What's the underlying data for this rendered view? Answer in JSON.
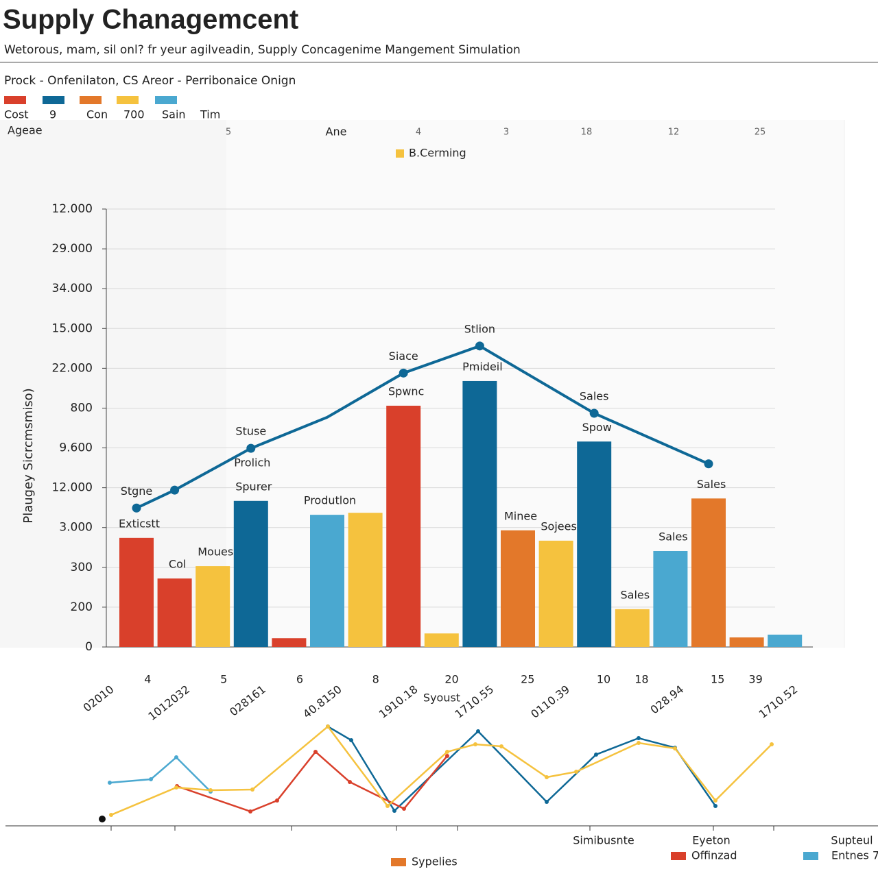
{
  "chart_data": {
    "type": "bar",
    "title": "Supply Chanagemcent",
    "subtitle": "Wetorous, mam, sil onl? fr yeur agilveadin, Supply Concagenime Mangement Simulation",
    "section_label": "Prock - Onfenilaton, CS Areor - Perribonaice Onign",
    "legend": [
      {
        "name": "Cost",
        "color": "#d9402b"
      },
      {
        "name": "9",
        "color": "#0e6896"
      },
      {
        "name": "Con",
        "color": "#e3782a"
      },
      {
        "name": "700",
        "color": "#f5c23e"
      },
      {
        "name": "Sain",
        "color": "#4aa8d0"
      },
      {
        "name": "Tim"
      }
    ],
    "legend_sub": "Ageae",
    "top_labels": [
      "5",
      "Ane",
      "4",
      "3",
      "18",
      "12",
      "25"
    ],
    "top_legend": {
      "name": "B.Cerming",
      "color": "#f5c23e"
    },
    "ylabel": "Plaugey Sicrcmsmiso)",
    "ylim": [
      0,
      11
    ],
    "yticks": [
      {
        "value": 0,
        "label": "0"
      },
      {
        "value": 1,
        "label": "200"
      },
      {
        "value": 2,
        "label": "300"
      },
      {
        "value": 3,
        "label": "3.000"
      },
      {
        "value": 4,
        "label": "12.000"
      },
      {
        "value": 5,
        "label": "9.600"
      },
      {
        "value": 6,
        "label": "800"
      },
      {
        "value": 7,
        "label": "22.000"
      },
      {
        "value": 8,
        "label": "15.000"
      },
      {
        "value": 9,
        "label": "34.000"
      },
      {
        "value": 10,
        "label": "29.000"
      },
      {
        "value": 11,
        "label": "12.000"
      }
    ],
    "grid": true,
    "values": [
      2.74,
      1.72,
      2.03,
      3.67,
      0.22,
      3.32,
      3.37,
      6.06,
      0.34,
      6.68,
      2.93,
      2.67,
      5.16,
      0.95,
      2.41,
      3.73,
      0.24,
      0.31
    ],
    "colors": [
      "#d9402b",
      "#d9402b",
      "#f5c23e",
      "#0e6896",
      "#d9402b",
      "#4aa8d0",
      "#f5c23e",
      "#d9402b",
      "#f5c23e",
      "#0e6896",
      "#e3782a",
      "#f5c23e",
      "#0e6896",
      "#f5c23e",
      "#4aa8d0",
      "#e3782a",
      "#e3782a",
      "#4aa8d0"
    ],
    "bar_labels": [
      "Exticstt",
      "Col",
      "Moues",
      "Spurer",
      null,
      "Produtlon",
      null,
      "Spwnc",
      null,
      "Pmideil",
      "Minee",
      "Sojees",
      "Spow",
      "Sales",
      "Sales",
      "Sales",
      null,
      null
    ],
    "line": {
      "color": "#0e6896",
      "x": [
        0,
        1,
        3,
        5,
        7,
        9,
        12,
        15
      ],
      "values": [
        3.49,
        3.94,
        4.99,
        5.77,
        6.88,
        7.56,
        5.87,
        4.6
      ],
      "labels": [
        "Stgne",
        null,
        "Stuse",
        null,
        "Siace",
        "Stlion",
        "Sales",
        null
      ],
      "sublabels": [
        null,
        null,
        "Prolich",
        null,
        null,
        null,
        null,
        null
      ]
    },
    "x_labels": [
      "02010",
      "4",
      "1012032",
      "5",
      "028161",
      "6",
      "40.8150",
      "8",
      "1910.18",
      "20",
      "1710.55",
      "25",
      "0110.39",
      "10",
      "18",
      "028.94",
      "15",
      "39",
      "1710.52"
    ],
    "x_sub": "Syoust",
    "mini": {
      "xlim": [
        0,
        100
      ],
      "ylim": [
        0,
        10
      ],
      "series": [
        {
          "color": "#4aa8d0",
          "x": [
            1,
            7,
            10.7,
            15.7
          ],
          "values": [
            3.87,
            4.2,
            6.33,
            3.0
          ]
        },
        {
          "color": "#0e6896",
          "x": [
            32.8,
            36.2,
            42.5,
            54.7,
            64.7,
            71.9,
            78.1,
            83.4,
            89.3
          ],
          "values": [
            9.33,
            8.0,
            1.13,
            8.87,
            2.0,
            6.6,
            8.2,
            7.27,
            1.6
          ]
        },
        {
          "color": "#d9402b",
          "x": [
            10.8,
            21.5,
            25.4,
            31,
            36,
            43.9,
            50.2
          ],
          "values": [
            3.53,
            1.07,
            2.13,
            6.87,
            3.93,
            1.33,
            6.47
          ]
        },
        {
          "color": "#f5c23e",
          "x": [
            1.2,
            10.7,
            15.7,
            21.8,
            32.8,
            41.5,
            50.2,
            54.3,
            58.1,
            64.7,
            69,
            78.1,
            83.4,
            89.3,
            97.5
          ],
          "values": [
            0.73,
            3.4,
            3.13,
            3.2,
            9.33,
            1.6,
            6.87,
            7.6,
            7.4,
            4.4,
            4.93,
            7.73,
            7.2,
            2.13,
            7.6
          ]
        }
      ],
      "labels": [
        "Simibusnte",
        "Eyeton",
        "Supteul"
      ],
      "legend": [
        {
          "name": "Offinzad",
          "color": "#d9402b"
        },
        {
          "name": "Entnes 7",
          "color": "#4aa8d0"
        },
        {
          "name": "Sypelies",
          "color": "#e3782a"
        }
      ]
    }
  }
}
